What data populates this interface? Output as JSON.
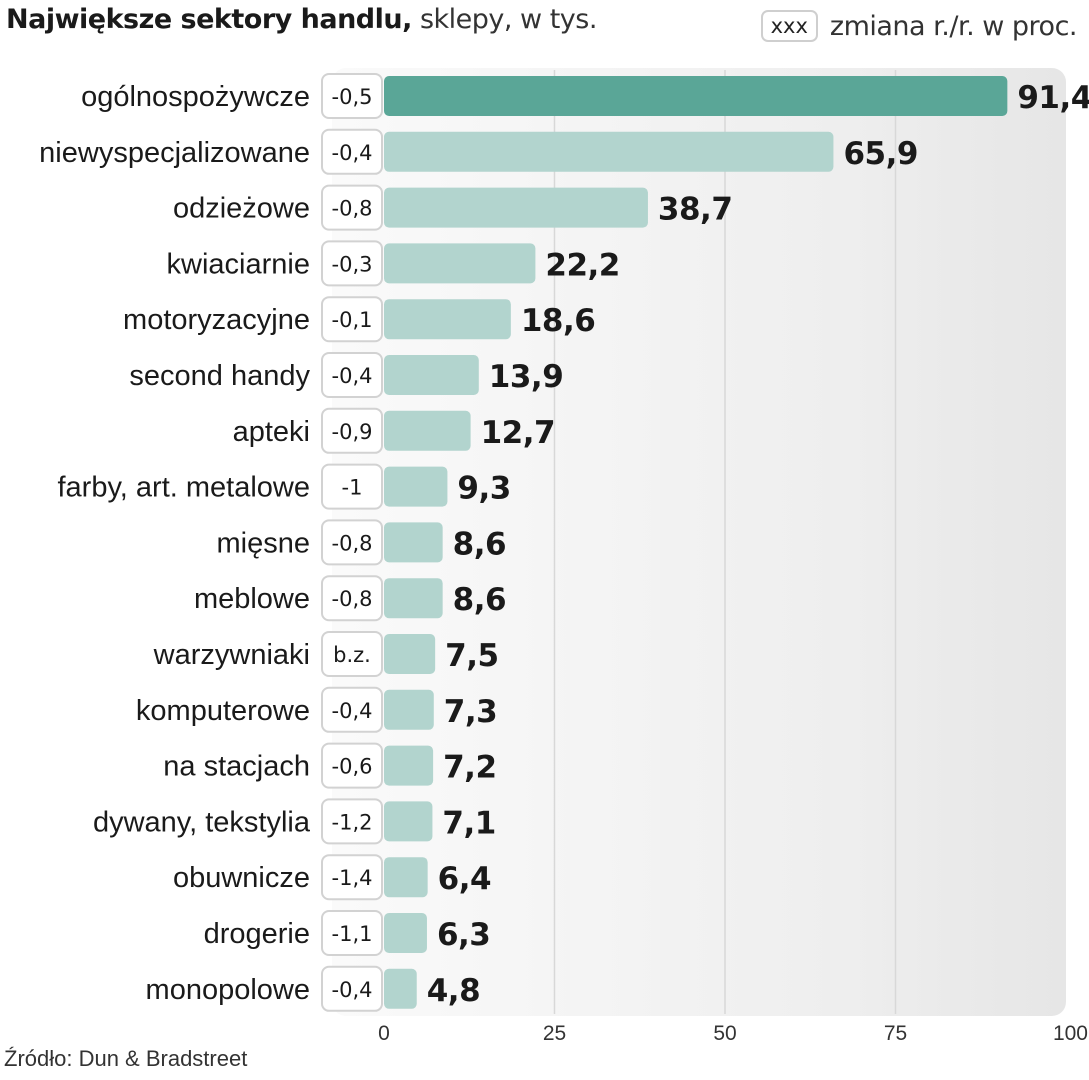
{
  "header": {
    "title_bold": "Największe sektory handlu,",
    "title_light": " sklepy, w tys."
  },
  "legend": {
    "box_text": "xxx",
    "text": "zmiana r./r. w proc."
  },
  "source": "Źródło: Dun & Bradstreet",
  "colors": {
    "highlight": "#5aa697",
    "bar": "#b2d4ce",
    "grid": "#d8d8d8"
  },
  "chart_data": {
    "type": "bar",
    "orientation": "horizontal",
    "title": "Największe sektory handlu, sklepy, w tys.",
    "categories": [
      "ogólnospożywcze",
      "niewyspecjalizowane",
      "odzieżowe",
      "kwiaciarnie",
      "motoryzacyjne",
      "second handy",
      "apteki",
      "farby, art. metalowe",
      "mięsne",
      "meblowe",
      "warzywniaki",
      "komputerowe",
      "na stacjach",
      "dywany, tekstylia",
      "obuwnicze",
      "drogerie",
      "monopolowe"
    ],
    "values": [
      91.4,
      65.9,
      38.7,
      22.2,
      18.6,
      13.9,
      12.7,
      9.3,
      8.6,
      8.6,
      7.5,
      7.3,
      7.2,
      7.1,
      6.4,
      6.3,
      4.8
    ],
    "value_labels": [
      "91,4",
      "65,9",
      "38,7",
      "22,2",
      "18,6",
      "13,9",
      "12,7",
      "9,3",
      "8,6",
      "8,6",
      "7,5",
      "7,3",
      "7,2",
      "7,1",
      "6,4",
      "6,3",
      "4,8"
    ],
    "changes": [
      "-0,5",
      "-0,4",
      "-0,8",
      "-0,3",
      "-0,1",
      "-0,4",
      "-0,9",
      "-1",
      "-0,8",
      "-0,8",
      "b.z.",
      "-0,4",
      "-0,6",
      "-1,2",
      "-1,4",
      "-1,1",
      "-0,4"
    ],
    "xlim": [
      0,
      100
    ],
    "xticks": [
      0,
      25,
      50,
      75,
      100
    ],
    "xtick_labels": [
      "0",
      "25",
      "50",
      "75",
      "100"
    ],
    "grid": true,
    "highlight_index": 0
  }
}
